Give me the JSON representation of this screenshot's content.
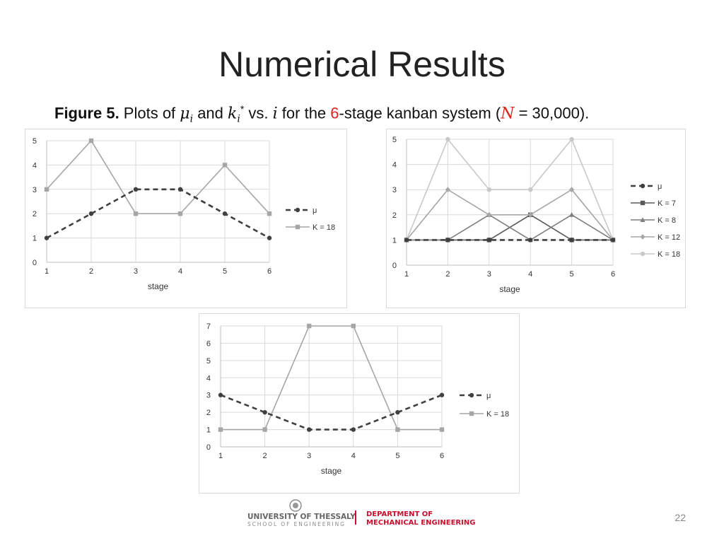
{
  "slide": {
    "title": "Numerical Results",
    "caption": {
      "figure_label": "Figure 5.",
      "text_1": " Plots of ",
      "mu": "μ",
      "mu_sub": "i",
      "text_2": " and ",
      "k": "k",
      "k_sub": "i",
      "k_sup": "*",
      "text_3": " vs. ",
      "i": "i",
      "text_4": " for the ",
      "stages": "6",
      "text_5": "-stage kanban system (",
      "N": "N",
      "text_6": " = 30,000)."
    },
    "page_number": "22"
  },
  "footer": {
    "university": "UNIVERSITY OF THESSALY",
    "school": "SCHOOL OF ENGINEERING",
    "department_line1": "DEPARTMENT OF",
    "department_line2": "MECHANICAL ENGINEERING",
    "accent_color": "#c8102e"
  },
  "chart_data": [
    {
      "type": "line",
      "xlabel": "stage",
      "x": [
        1,
        2,
        3,
        4,
        5,
        6
      ],
      "ylim": [
        0,
        5
      ],
      "yticks": [
        0,
        1,
        2,
        3,
        4,
        5
      ],
      "grid": true,
      "legend_position": "right",
      "series": [
        {
          "name": "μ",
          "values": [
            1,
            2,
            3,
            3,
            2,
            1
          ],
          "color": "#404040",
          "dashed": true,
          "marker": "circle"
        },
        {
          "name": "K = 18",
          "values": [
            3,
            5,
            2,
            2,
            4,
            2
          ],
          "color": "#a6a6a6",
          "dashed": false,
          "marker": "square"
        }
      ]
    },
    {
      "type": "line",
      "xlabel": "stage",
      "x": [
        1,
        2,
        3,
        4,
        5,
        6
      ],
      "ylim": [
        0,
        5
      ],
      "yticks": [
        0,
        1,
        2,
        3,
        4,
        5
      ],
      "grid": true,
      "legend_position": "right",
      "series": [
        {
          "name": "μ",
          "values": [
            1,
            1,
            1,
            1,
            1,
            1
          ],
          "color": "#404040",
          "dashed": true,
          "marker": "circle"
        },
        {
          "name": "K = 7",
          "values": [
            1,
            1,
            1,
            2,
            1,
            1
          ],
          "color": "#595959",
          "dashed": false,
          "marker": "square"
        },
        {
          "name": "K = 8",
          "values": [
            1,
            1,
            2,
            1,
            2,
            1
          ],
          "color": "#7f7f7f",
          "dashed": false,
          "marker": "triangle"
        },
        {
          "name": "K = 12",
          "values": [
            1,
            3,
            2,
            2,
            3,
            1
          ],
          "color": "#a6a6a6",
          "dashed": false,
          "marker": "diamond"
        },
        {
          "name": "K = 18",
          "values": [
            1,
            5,
            3,
            3,
            5,
            1
          ],
          "color": "#c8c8c8",
          "dashed": false,
          "marker": "circle"
        }
      ]
    },
    {
      "type": "line",
      "xlabel": "stage",
      "x": [
        1,
        2,
        3,
        4,
        5,
        6
      ],
      "ylim": [
        0,
        7
      ],
      "yticks": [
        0,
        1,
        2,
        3,
        4,
        5,
        6,
        7
      ],
      "grid": true,
      "legend_position": "right",
      "series": [
        {
          "name": "μ",
          "values": [
            3,
            2,
            1,
            1,
            2,
            3
          ],
          "color": "#404040",
          "dashed": true,
          "marker": "circle"
        },
        {
          "name": "K = 18",
          "values": [
            1,
            1,
            7,
            7,
            1,
            1
          ],
          "color": "#a6a6a6",
          "dashed": false,
          "marker": "square"
        }
      ]
    }
  ]
}
